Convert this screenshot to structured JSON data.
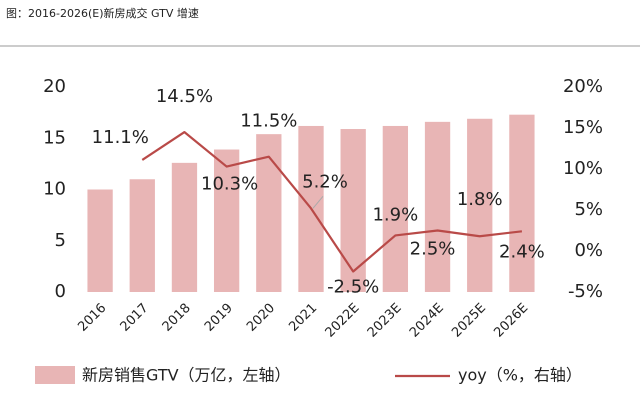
{
  "chart_data": {
    "type": "bar_line",
    "title": "图：2016-2026(E)新房成交 GTV 增速",
    "categories": [
      "2016",
      "2017",
      "2018",
      "2019",
      "2020",
      "2021",
      "2022E",
      "2023E",
      "2024E",
      "2025E",
      "2026E"
    ],
    "series": [
      {
        "name": "新房销售GTV（万亿，左轴）",
        "color": "#e8b5b5",
        "type": "bar",
        "values": [
          10,
          11,
          12.6,
          13.9,
          15.4,
          16.2,
          15.9,
          16.2,
          16.6,
          16.9,
          17.3
        ]
      },
      {
        "name": "yoy（%，右轴）",
        "color": "#b94a48",
        "type": "line",
        "axis": "y2",
        "values": [
          null,
          11.1,
          14.5,
          10.3,
          11.5,
          5.2,
          -2.5,
          1.9,
          2.5,
          1.8,
          2.4
        ],
        "value_labels": [
          null,
          "11.1%",
          "14.5%",
          "10.3%",
          "11.5%",
          "5.2%",
          "-2.5%",
          "1.9%",
          "2.5%",
          "1.8%",
          "2.4%"
        ]
      }
    ],
    "ylim": [
      0,
      20
    ],
    "yticks": [
      0,
      5,
      10,
      15,
      20
    ],
    "y2lim": [
      -5,
      20
    ],
    "y2ticks": [
      {
        "value": -5,
        "label": "-5%"
      },
      {
        "value": 0,
        "label": "0%"
      },
      {
        "value": 5,
        "label": "5%"
      },
      {
        "value": 10,
        "label": "10%"
      },
      {
        "value": 15,
        "label": "15%"
      },
      {
        "value": 20,
        "label": "20%"
      }
    ]
  }
}
